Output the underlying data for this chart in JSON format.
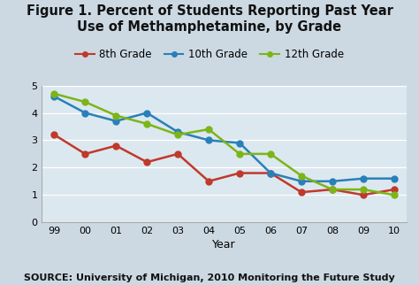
{
  "title_line1": "Figure 1. Percent of Students Reporting Past Year",
  "title_line2": "Use of Methamphetamine, by Grade",
  "xlabel": "Year",
  "source": "SOURCE: University of Michigan, 2010 Monitoring the Future Study",
  "years": [
    "99",
    "00",
    "01",
    "02",
    "03",
    "04",
    "05",
    "06",
    "07",
    "08",
    "09",
    "10"
  ],
  "grade8": [
    3.2,
    2.5,
    2.8,
    2.2,
    2.5,
    1.5,
    1.8,
    1.8,
    1.1,
    1.2,
    1.0,
    1.2
  ],
  "grade10": [
    4.6,
    4.0,
    3.7,
    4.0,
    3.3,
    3.0,
    2.9,
    1.8,
    1.5,
    1.5,
    1.6,
    1.6
  ],
  "grade12": [
    4.7,
    4.4,
    3.9,
    3.6,
    3.2,
    3.4,
    2.5,
    2.5,
    1.7,
    1.2,
    1.2,
    1.0
  ],
  "color8": "#c0392b",
  "color10": "#2980b9",
  "color12": "#7cb518",
  "fig_bg_color": "#ccd9e3",
  "plot_bg_color": "#dce8f0",
  "ylim": [
    0,
    5
  ],
  "yticks": [
    0,
    1,
    2,
    3,
    4,
    5
  ],
  "legend_labels": [
    "8th Grade",
    "10th Grade",
    "12th Grade"
  ],
  "title_fontsize": 10.5,
  "tick_fontsize": 8,
  "source_fontsize": 8,
  "legend_fontsize": 8.5,
  "marker_size": 5,
  "line_width": 1.8
}
